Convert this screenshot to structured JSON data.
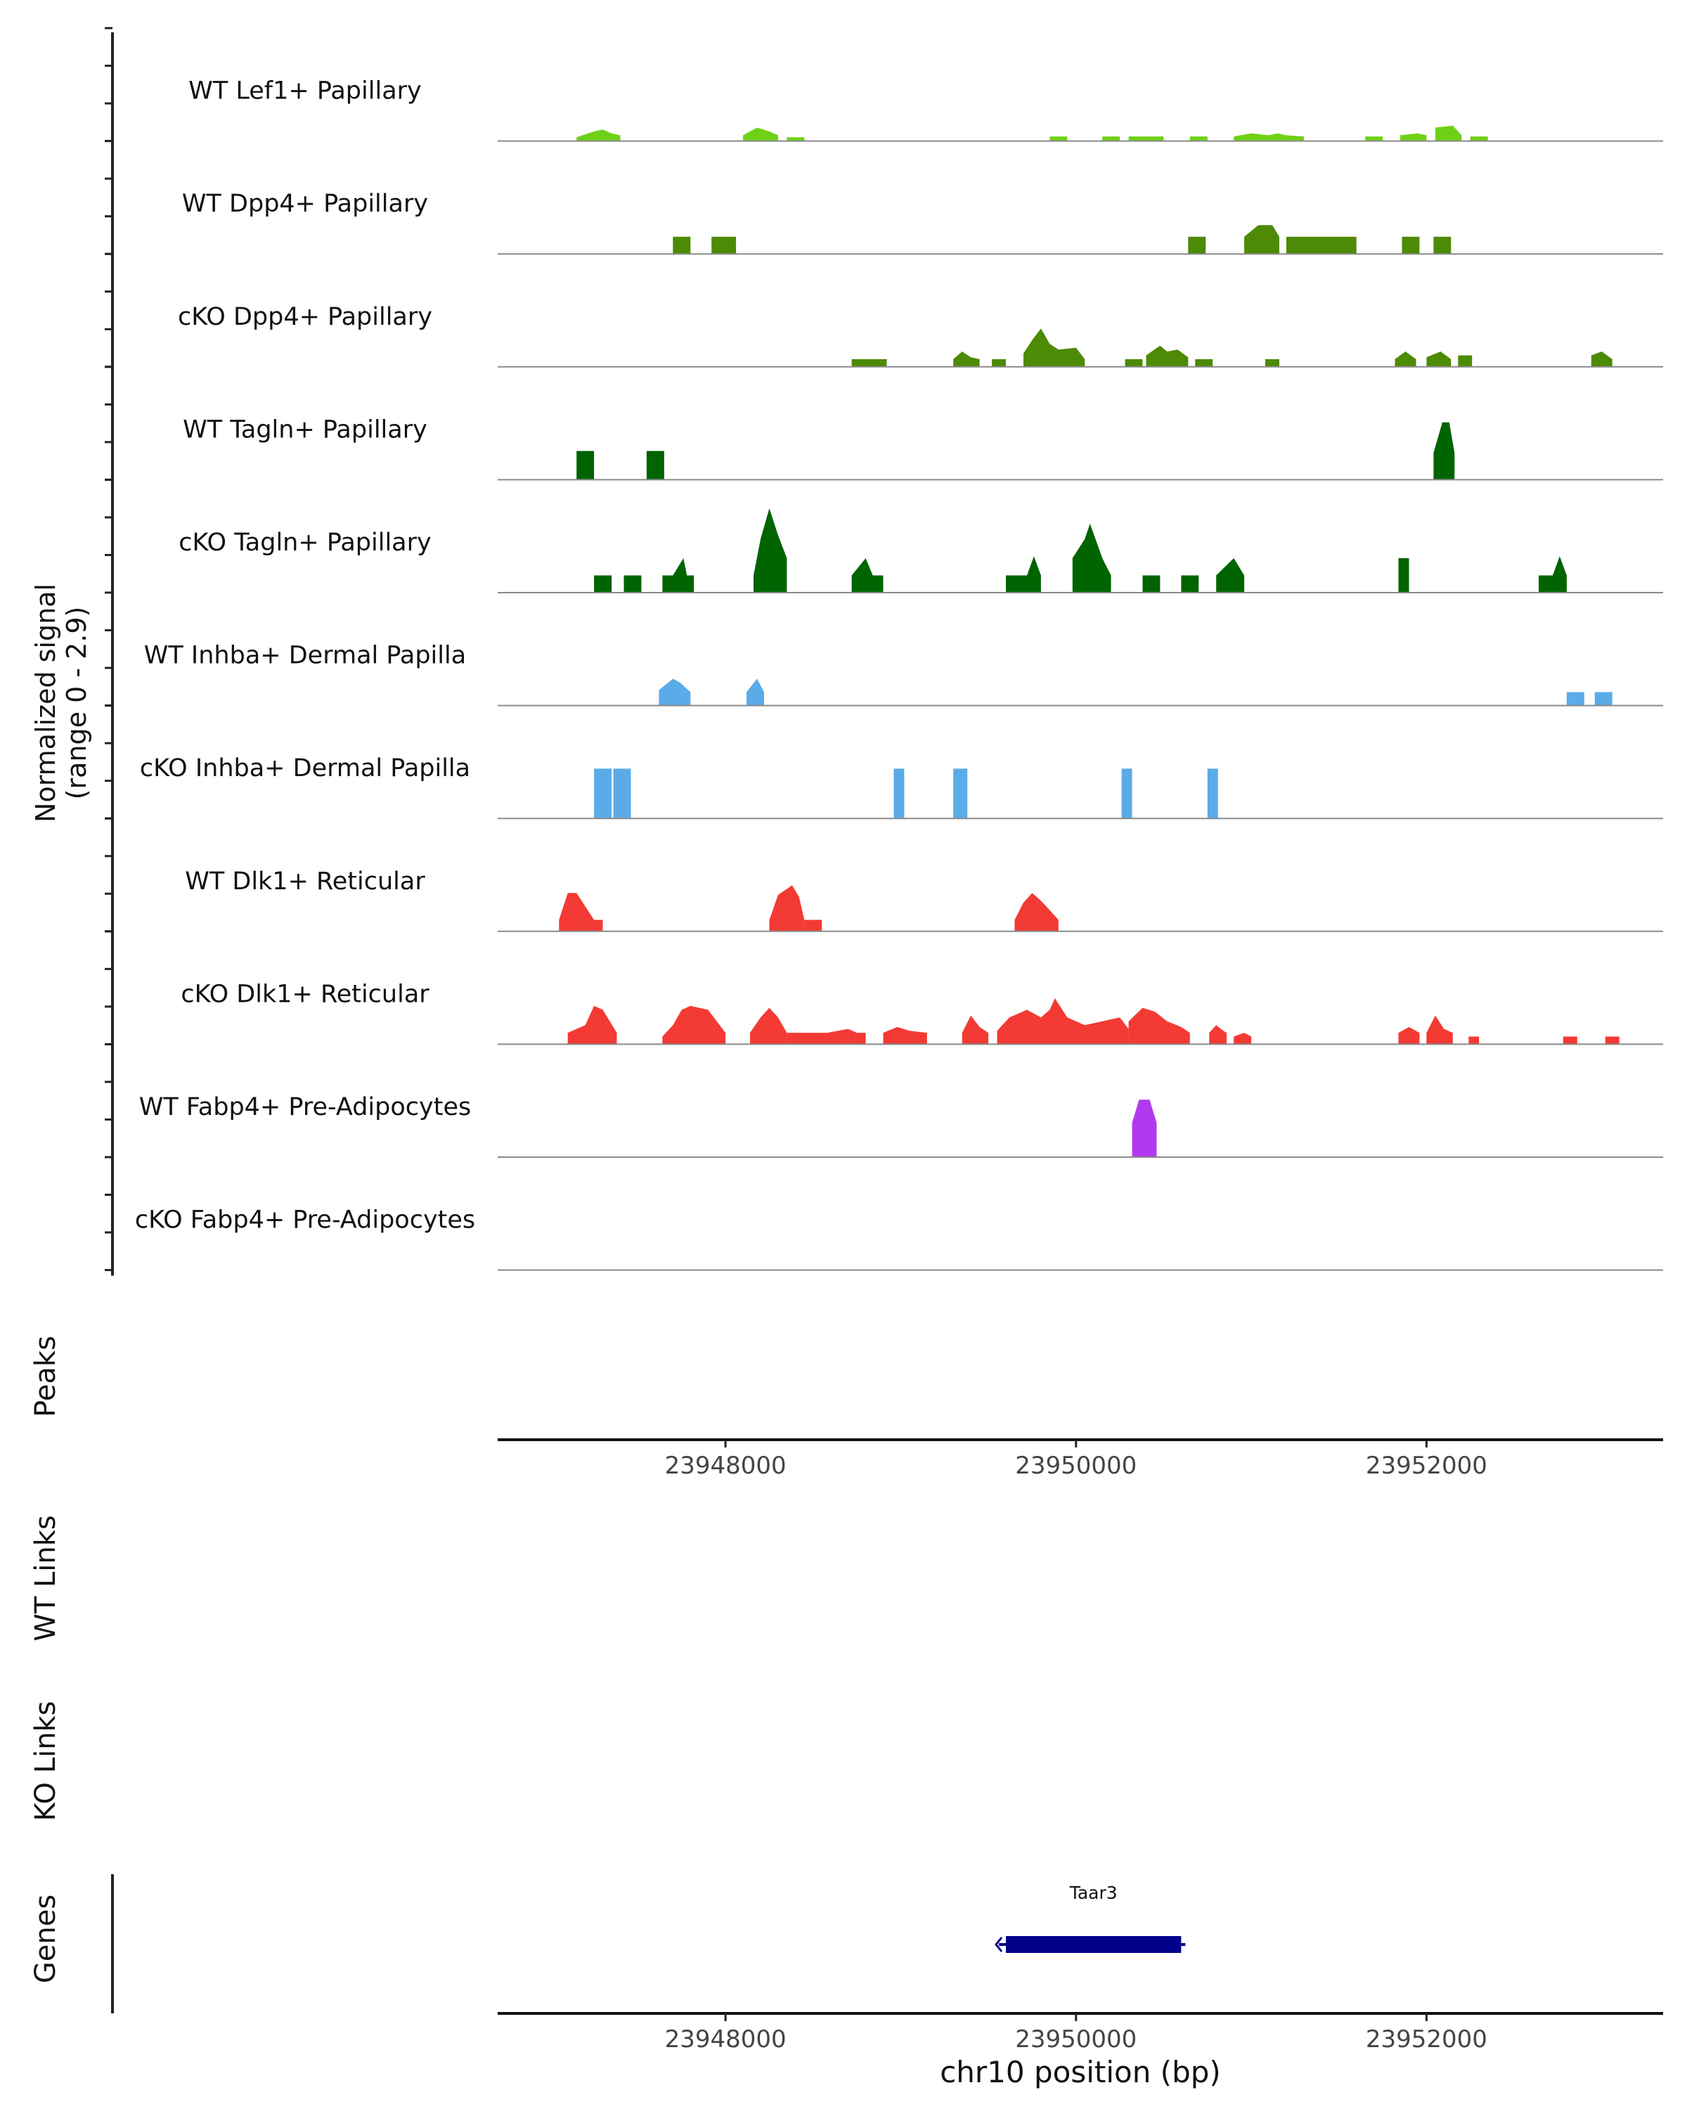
{
  "chart_data": {
    "type": "area",
    "y_axis_title_line1": "Normalized signal",
    "y_axis_title_line2": "(range 0 - 2.9)",
    "y_range": [
      0,
      2.9
    ],
    "x_range": [
      23946700,
      23953350
    ],
    "x_label": "chr10 position (bp)",
    "x_ticks": [
      "23948000",
      "23950000",
      "23952000"
    ],
    "x_tick_values": [
      23948000,
      23950000,
      23952000
    ],
    "panel_labels": {
      "peaks": "Peaks",
      "wt_links": "WT Links",
      "ko_links": "KO Links",
      "genes": "Genes"
    },
    "gene": {
      "name": "Taar3",
      "start": 23949600,
      "end": 23950600,
      "strand": "-",
      "color": "#00008b"
    },
    "tracks": [
      {
        "name": "WT Lef1+ Papillary",
        "color": "#6ed117",
        "segments": [
          {
            "x": [
              23947150,
              23947250,
              23947300,
              23947350,
              23947400
            ],
            "y": [
              0.1,
              0.25,
              0.3,
              0.2,
              0.15
            ]
          },
          {
            "x": [
              23948100,
              23948180,
              23948250,
              23948300
            ],
            "y": [
              0.15,
              0.35,
              0.25,
              0.15
            ]
          },
          {
            "x": [
              23948350,
              23948450
            ],
            "y": [
              0.1,
              0.1
            ]
          },
          {
            "x": [
              23949850,
              23949950
            ],
            "y": [
              0.12,
              0.12
            ]
          },
          {
            "x": [
              23950150,
              23950250
            ],
            "y": [
              0.12,
              0.12
            ]
          },
          {
            "x": [
              23950300,
              23950500
            ],
            "y": [
              0.12,
              0.12
            ]
          },
          {
            "x": [
              23950650,
              23950750
            ],
            "y": [
              0.12,
              0.12
            ]
          },
          {
            "x": [
              23950900,
              23951000,
              23951100,
              23951150,
              23951200,
              23951300
            ],
            "y": [
              0.12,
              0.2,
              0.15,
              0.2,
              0.15,
              0.12
            ]
          },
          {
            "x": [
              23951650,
              23951750
            ],
            "y": [
              0.12,
              0.12
            ]
          },
          {
            "x": [
              23951850,
              23951950,
              23952000
            ],
            "y": [
              0.15,
              0.2,
              0.15
            ]
          },
          {
            "x": [
              23952050,
              23952150,
              23952200
            ],
            "y": [
              0.35,
              0.4,
              0.15
            ]
          },
          {
            "x": [
              23952250,
              23952350
            ],
            "y": [
              0.12,
              0.12
            ]
          }
        ]
      },
      {
        "name": "WT Dpp4+ Papillary",
        "color": "#4d8a05",
        "segments": [
          {
            "x": [
              23947700,
              23947800
            ],
            "y": [
              0.45,
              0.45
            ]
          },
          {
            "x": [
              23947920,
              23948060
            ],
            "y": [
              0.45,
              0.45
            ]
          },
          {
            "x": [
              23950640,
              23950740
            ],
            "y": [
              0.45,
              0.45
            ]
          },
          {
            "x": [
              23950960,
              23951040,
              23951120,
              23951160
            ],
            "y": [
              0.45,
              0.75,
              0.75,
              0.45
            ]
          },
          {
            "x": [
              23951200,
              23951600
            ],
            "y": [
              0.45,
              0.45
            ]
          },
          {
            "x": [
              23951860,
              23951960
            ],
            "y": [
              0.45,
              0.45
            ]
          },
          {
            "x": [
              23952040,
              23952140
            ],
            "y": [
              0.45,
              0.45
            ]
          }
        ]
      },
      {
        "name": "cKO Dpp4+ Papillary",
        "color": "#4d8a05",
        "segments": [
          {
            "x": [
              23948720,
              23948920
            ],
            "y": [
              0.2,
              0.2
            ]
          },
          {
            "x": [
              23949300,
              23949350,
              23949400,
              23949450
            ],
            "y": [
              0.2,
              0.4,
              0.25,
              0.2
            ]
          },
          {
            "x": [
              23949520,
              23949600
            ],
            "y": [
              0.2,
              0.2
            ]
          },
          {
            "x": [
              23949700,
              23949750,
              23949800,
              23949850,
              23949900,
              23950000,
              23950050
            ],
            "y": [
              0.35,
              0.7,
              1.0,
              0.6,
              0.45,
              0.5,
              0.2
            ]
          },
          {
            "x": [
              23950280,
              23950380
            ],
            "y": [
              0.2,
              0.2
            ]
          },
          {
            "x": [
              23950400,
              23950480,
              23950520,
              23950580,
              23950640
            ],
            "y": [
              0.3,
              0.55,
              0.4,
              0.45,
              0.25
            ]
          },
          {
            "x": [
              23950680,
              23950780
            ],
            "y": [
              0.2,
              0.2
            ]
          },
          {
            "x": [
              23951080,
              23951160
            ],
            "y": [
              0.2,
              0.2
            ]
          },
          {
            "x": [
              23951820,
              23951880,
              23951940
            ],
            "y": [
              0.2,
              0.4,
              0.2
            ]
          },
          {
            "x": [
              23952000,
              23952080,
              23952140
            ],
            "y": [
              0.25,
              0.4,
              0.2
            ]
          },
          {
            "x": [
              23952180,
              23952260
            ],
            "y": [
              0.3,
              0.3
            ]
          },
          {
            "x": [
              23952940,
              23953000,
              23953060
            ],
            "y": [
              0.3,
              0.4,
              0.2
            ]
          }
        ]
      },
      {
        "name": "WT Tagln+ Papillary",
        "color": "#006400",
        "segments": [
          {
            "x": [
              23947150,
              23947250
            ],
            "y": [
              0.75,
              0.75
            ]
          },
          {
            "x": [
              23947550,
              23947650
            ],
            "y": [
              0.75,
              0.75
            ]
          },
          {
            "x": [
              23952040,
              23952090,
              23952130,
              23952160
            ],
            "y": [
              0.7,
              1.5,
              1.5,
              0.7
            ]
          }
        ]
      },
      {
        "name": "cKO Tagln+ Papillary",
        "color": "#006400",
        "segments": [
          {
            "x": [
              23947250,
              23947350
            ],
            "y": [
              0.45,
              0.45
            ]
          },
          {
            "x": [
              23947420,
              23947520
            ],
            "y": [
              0.45,
              0.45
            ]
          },
          {
            "x": [
              23947640,
              23947700,
              23947760,
              23947780,
              23947820
            ],
            "y": [
              0.45,
              0.45,
              0.9,
              0.45,
              0.45
            ]
          },
          {
            "x": [
              23948160,
              23948200,
              23948250,
              23948300,
              23948350
            ],
            "y": [
              0.45,
              1.4,
              2.2,
              1.5,
              0.9
            ]
          },
          {
            "x": [
              23948720,
              23948800,
              23948840,
              23948900
            ],
            "y": [
              0.45,
              0.9,
              0.45,
              0.45
            ]
          },
          {
            "x": [
              23949600,
              23949720,
              23949760,
              23949800
            ],
            "y": [
              0.45,
              0.45,
              0.95,
              0.45
            ]
          },
          {
            "x": [
              23949980,
              23950050,
              23950080,
              23950150,
              23950200
            ],
            "y": [
              0.9,
              1.4,
              1.8,
              0.9,
              0.45
            ]
          },
          {
            "x": [
              23950380,
              23950480
            ],
            "y": [
              0.45,
              0.45
            ]
          },
          {
            "x": [
              23950600,
              23950700
            ],
            "y": [
              0.45,
              0.45
            ]
          },
          {
            "x": [
              23950800,
              23950900,
              23950960
            ],
            "y": [
              0.45,
              0.9,
              0.45
            ]
          },
          {
            "x": [
              23951840,
              23951900
            ],
            "y": [
              0.9,
              0.9
            ]
          },
          {
            "x": [
              23952640,
              23952720,
              23952760,
              23952800
            ],
            "y": [
              0.45,
              0.45,
              0.95,
              0.45
            ]
          }
        ]
      },
      {
        "name": "WT Inhba+ Dermal Papilla",
        "color": "#5aabe8",
        "segments": [
          {
            "x": [
              23947620,
              23947700,
              23947740,
              23947800
            ],
            "y": [
              0.4,
              0.7,
              0.6,
              0.35
            ]
          },
          {
            "x": [
              23948120,
              23948180,
              23948220
            ],
            "y": [
              0.35,
              0.7,
              0.35
            ]
          },
          {
            "x": [
              23952800,
              23952900
            ],
            "y": [
              0.35,
              0.35
            ]
          },
          {
            "x": [
              23952960,
              23953060
            ],
            "y": [
              0.35,
              0.35
            ]
          }
        ]
      },
      {
        "name": "cKO Inhba+ Dermal Papilla",
        "color": "#5aabe8",
        "segments": [
          {
            "x": [
              23947250,
              23947350
            ],
            "y": [
              1.3,
              1.3
            ]
          },
          {
            "x": [
              23947360,
              23947460
            ],
            "y": [
              1.3,
              1.3
            ]
          },
          {
            "x": [
              23948960,
              23949020
            ],
            "y": [
              1.3,
              1.3
            ]
          },
          {
            "x": [
              23949300,
              23949380
            ],
            "y": [
              1.3,
              1.3
            ]
          },
          {
            "x": [
              23950260,
              23950320
            ],
            "y": [
              1.3,
              1.3
            ]
          },
          {
            "x": [
              23950750,
              23950810
            ],
            "y": [
              1.3,
              1.3
            ]
          }
        ]
      },
      {
        "name": "WT Dlk1+ Reticular",
        "color": "#f33a34",
        "segments": [
          {
            "x": [
              23947050,
              23947100,
              23947150,
              23947250,
              23947300
            ],
            "y": [
              0.3,
              1.0,
              1.0,
              0.3,
              0.3
            ]
          },
          {
            "x": [
              23948250,
              23948300,
              23948380,
              23948420,
              23948450
            ],
            "y": [
              0.3,
              0.95,
              1.2,
              0.9,
              0.3
            ]
          },
          {
            "x": [
              23948450,
              23948550
            ],
            "y": [
              0.3,
              0.3
            ]
          },
          {
            "x": [
              23949650,
              23949700,
              23949750,
              23949800,
              23949850,
              23949900
            ],
            "y": [
              0.3,
              0.75,
              1.0,
              0.8,
              0.55,
              0.3
            ]
          }
        ]
      },
      {
        "name": "cKO Dlk1+ Reticular",
        "color": "#f33a34",
        "segments": [
          {
            "x": [
              23947100,
              23947200,
              23947250,
              23947300,
              23947380
            ],
            "y": [
              0.3,
              0.5,
              1.0,
              0.9,
              0.3
            ]
          },
          {
            "x": [
              23947640,
              23947700,
              23947750,
              23947800,
              23947900,
              23947950,
              23948000
            ],
            "y": [
              0.2,
              0.5,
              0.9,
              1.0,
              0.9,
              0.6,
              0.3
            ]
          },
          {
            "x": [
              23948140,
              23948200,
              23948250,
              23948300,
              23948350
            ],
            "y": [
              0.3,
              0.7,
              0.95,
              0.7,
              0.3
            ]
          },
          {
            "x": [
              23948350,
              23948580,
              23948700
            ],
            "y": [
              0.3,
              0.3,
              0.4
            ]
          },
          {
            "x": [
              23948700,
              23948750,
              23948800
            ],
            "y": [
              0.4,
              0.3,
              0.3
            ]
          },
          {
            "x": [
              23948900,
              23948980,
              23949050,
              23949150
            ],
            "y": [
              0.3,
              0.45,
              0.35,
              0.3
            ]
          },
          {
            "x": [
              23949350,
              23949400,
              23949450,
              23949500
            ],
            "y": [
              0.3,
              0.75,
              0.45,
              0.3
            ]
          },
          {
            "x": [
              23949550,
              23949620,
              23949720,
              23949800,
              23949850,
              23949880,
              23949950,
              23950050,
              23950150,
              23950250,
              23950300
            ],
            "y": [
              0.35,
              0.7,
              0.9,
              0.7,
              0.9,
              1.2,
              0.7,
              0.5,
              0.6,
              0.7,
              0.4
            ]
          },
          {
            "x": [
              23950300,
              23950380,
              23950450,
              23950520,
              23950600,
              23950650
            ],
            "y": [
              0.6,
              0.95,
              0.85,
              0.6,
              0.45,
              0.3
            ]
          },
          {
            "x": [
              23950760,
              23950800,
              23950840,
              23950860
            ],
            "y": [
              0.3,
              0.5,
              0.35,
              0.3
            ]
          },
          {
            "x": [
              23950900,
              23950960,
              23951000
            ],
            "y": [
              0.2,
              0.3,
              0.2
            ]
          },
          {
            "x": [
              23951840,
              23951900,
              23951960
            ],
            "y": [
              0.3,
              0.45,
              0.3
            ]
          },
          {
            "x": [
              23952000,
              23952050,
              23952100,
              23952150
            ],
            "y": [
              0.3,
              0.75,
              0.4,
              0.3
            ]
          },
          {
            "x": [
              23952240,
              23952300
            ],
            "y": [
              0.2,
              0.2
            ]
          },
          {
            "x": [
              23952780,
              23952860
            ],
            "y": [
              0.2,
              0.2
            ]
          },
          {
            "x": [
              23953020,
              23953100
            ],
            "y": [
              0.2,
              0.2
            ]
          }
        ]
      },
      {
        "name": "WT Fabp4+ Pre-Adipocytes",
        "color": "#b23aee",
        "segments": [
          {
            "x": [
              23950320,
              23950360,
              23950420,
              23950460
            ],
            "y": [
              0.9,
              1.5,
              1.5,
              0.9
            ]
          }
        ]
      },
      {
        "name": "cKO Fabp4+ Pre-Adipocytes",
        "color": "#888888",
        "segments": []
      }
    ]
  }
}
